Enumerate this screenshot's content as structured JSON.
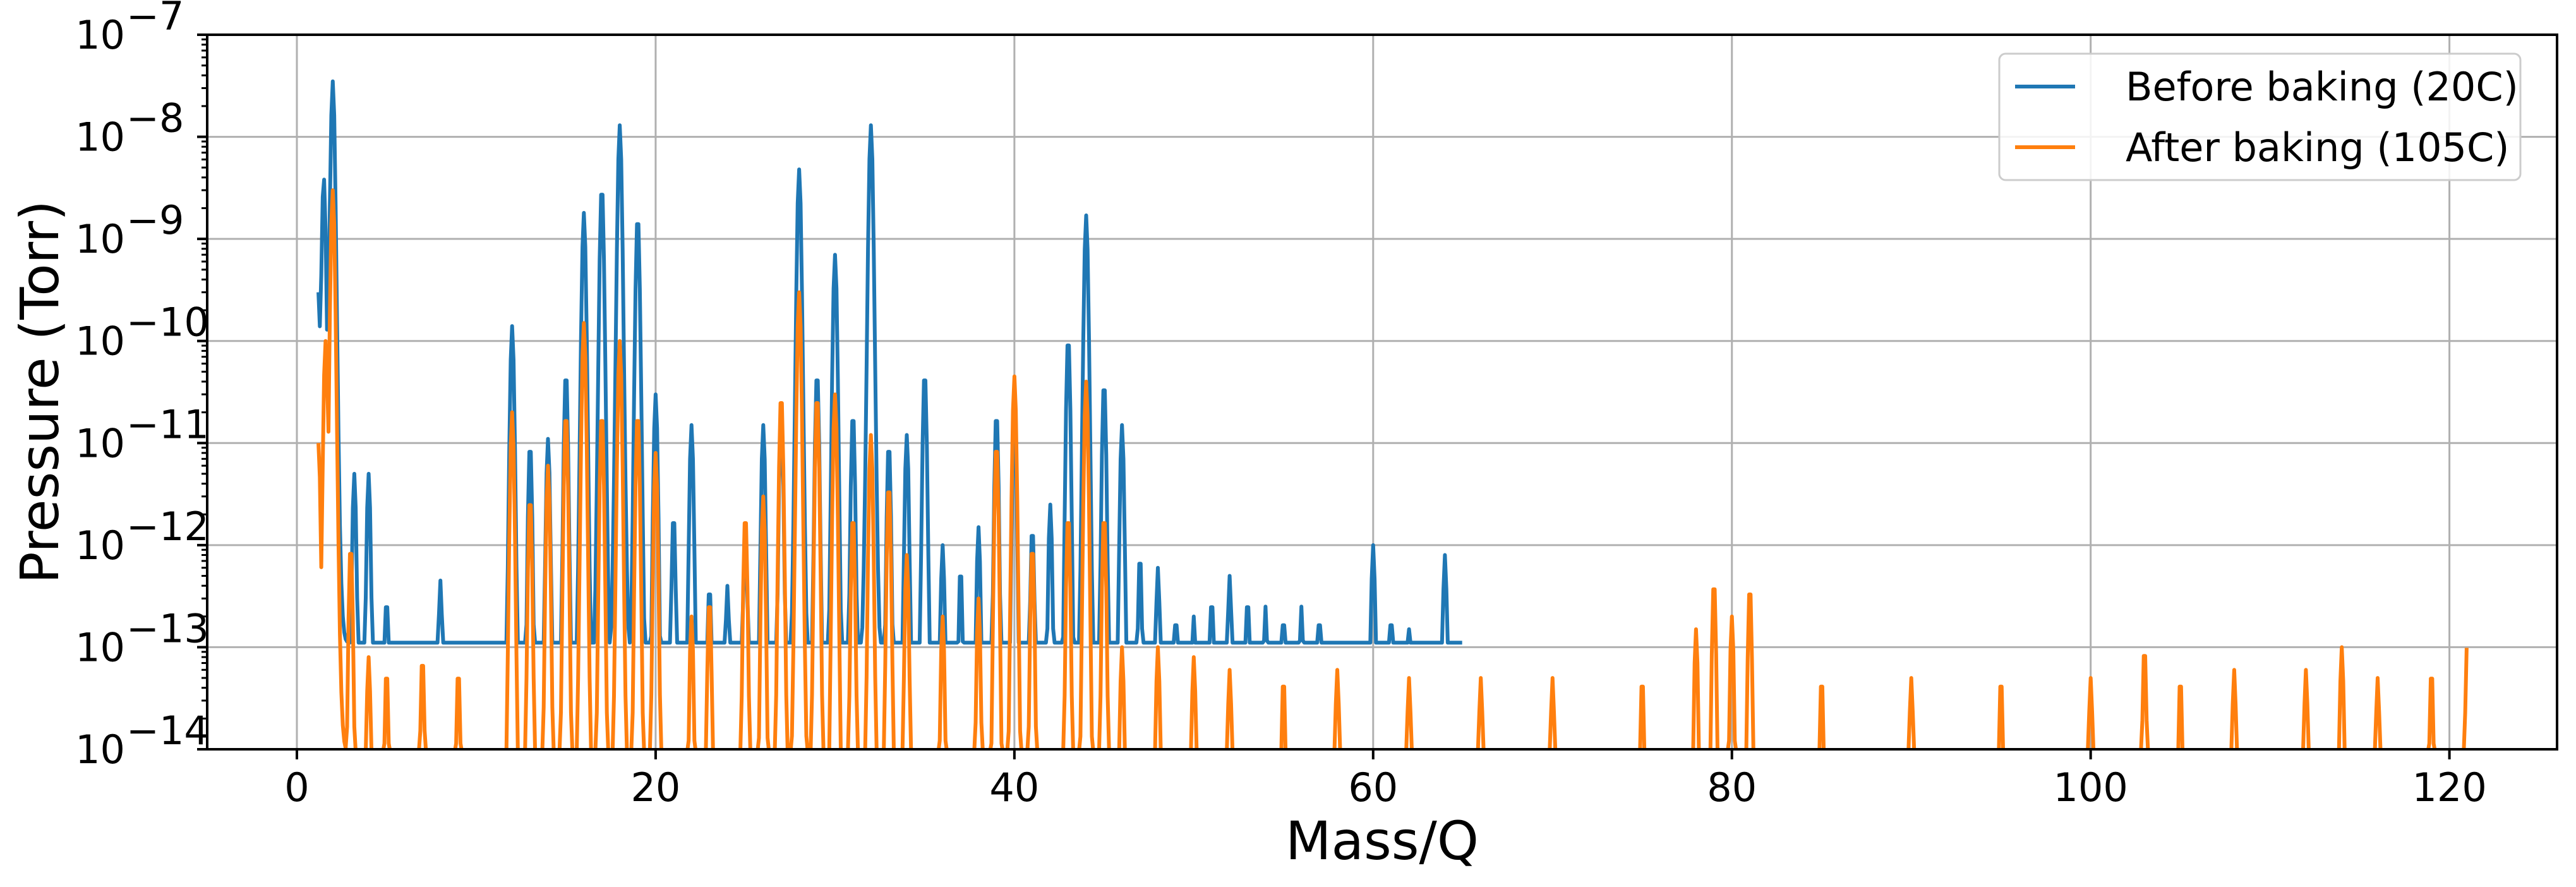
{
  "chart_data": {
    "type": "line",
    "title": "",
    "xlabel": "Mass/Q",
    "ylabel": "Pressure (Torr)",
    "xlim": [
      -5,
      126
    ],
    "ylim": [
      1e-14,
      1e-07
    ],
    "y_scale": "log",
    "grid": true,
    "legend_position": "top-right",
    "x_ticks": [
      "0",
      "20",
      "40",
      "60",
      "80",
      "100",
      "120"
    ],
    "x_tick_values": [
      0,
      20,
      40,
      60,
      80,
      100,
      120
    ],
    "y_tick_exponents": [
      "−7",
      "−8",
      "−9",
      "−10",
      "−11",
      "−12",
      "−13",
      "−14"
    ],
    "y_tick_values": [
      -7,
      -8,
      -9,
      -10,
      -11,
      -12,
      -13,
      -14
    ],
    "y_tick_base": "10",
    "series": [
      {
        "name": "Before baking (20C)",
        "color": "#1f77b4",
        "x_end": 65,
        "peaks": [
          [
            1.2,
            3e-10
          ],
          [
            1.5,
            4e-09
          ],
          [
            2.0,
            3.5e-08
          ],
          [
            3.2,
            5e-12
          ],
          [
            4.0,
            5e-12
          ],
          [
            5.0,
            3e-13
          ],
          [
            8.0,
            4.5e-13
          ],
          [
            10.5,
            5e-14
          ],
          [
            12.0,
            1.4e-10
          ],
          [
            13.0,
            1e-11
          ],
          [
            14.0,
            1.1e-11
          ],
          [
            15.0,
            5e-11
          ],
          [
            16.0,
            1.8e-09
          ],
          [
            17.0,
            3.3e-09
          ],
          [
            18.0,
            1.3e-08
          ],
          [
            19.0,
            1.7e-09
          ],
          [
            20.0,
            3e-11
          ],
          [
            21.0,
            2e-12
          ],
          [
            22.0,
            1.5e-11
          ],
          [
            23.0,
            4e-13
          ],
          [
            24.0,
            4e-13
          ],
          [
            25.0,
            1.5e-12
          ],
          [
            26.0,
            1.5e-11
          ],
          [
            27.0,
            2e-11
          ],
          [
            28.0,
            4.8e-09
          ],
          [
            29.0,
            5e-11
          ],
          [
            30.0,
            7e-10
          ],
          [
            31.0,
            2e-11
          ],
          [
            32.0,
            1.3e-08
          ],
          [
            33.0,
            1e-11
          ],
          [
            34.0,
            1.2e-11
          ],
          [
            35.0,
            5e-11
          ],
          [
            36.0,
            1e-12
          ],
          [
            37.0,
            6e-13
          ],
          [
            38.0,
            1.5e-12
          ],
          [
            39.0,
            2e-11
          ],
          [
            40.0,
            2.2e-11
          ],
          [
            41.0,
            1.5e-12
          ],
          [
            42.0,
            2.5e-12
          ],
          [
            43.0,
            1.1e-10
          ],
          [
            44.0,
            1.7e-09
          ],
          [
            45.0,
            4e-11
          ],
          [
            46.0,
            1.5e-11
          ],
          [
            47.0,
            8e-13
          ],
          [
            48.0,
            6e-13
          ],
          [
            49.0,
            2e-13
          ],
          [
            50.0,
            2e-13
          ],
          [
            51.0,
            3e-13
          ],
          [
            52.0,
            5e-13
          ],
          [
            53.0,
            3e-13
          ],
          [
            54.0,
            2.5e-13
          ],
          [
            55.0,
            2e-13
          ],
          [
            56.0,
            2.5e-13
          ],
          [
            57.0,
            2e-13
          ],
          [
            58.0,
            1e-13
          ],
          [
            59.0,
            1e-13
          ],
          [
            60.0,
            1e-12
          ],
          [
            61.0,
            2e-13
          ],
          [
            62.0,
            1.5e-13
          ],
          [
            63.0,
            1e-13
          ],
          [
            64.0,
            8e-13
          ],
          [
            65.0,
            7e-14
          ]
        ]
      },
      {
        "name": "After baking (105C)",
        "color": "#ff7f0e",
        "x_end": 121,
        "peaks": [
          [
            1.2,
            1e-11
          ],
          [
            1.6,
            1e-10
          ],
          [
            2.0,
            3e-09
          ],
          [
            3.0,
            1e-12
          ],
          [
            4.0,
            8e-14
          ],
          [
            5.0,
            6e-14
          ],
          [
            7.0,
            8e-14
          ],
          [
            9.0,
            6e-14
          ],
          [
            12.0,
            2e-11
          ],
          [
            13.0,
            3e-12
          ],
          [
            14.0,
            6e-12
          ],
          [
            15.0,
            2e-11
          ],
          [
            16.0,
            1.5e-10
          ],
          [
            17.0,
            2e-11
          ],
          [
            18.0,
            1e-10
          ],
          [
            19.0,
            2e-11
          ],
          [
            20.0,
            8e-12
          ],
          [
            22.0,
            2e-13
          ],
          [
            23.0,
            3e-13
          ],
          [
            25.0,
            2e-12
          ],
          [
            26.0,
            3e-12
          ],
          [
            27.0,
            3e-11
          ],
          [
            28.0,
            3e-10
          ],
          [
            29.0,
            3e-11
          ],
          [
            30.0,
            3e-11
          ],
          [
            31.0,
            2e-12
          ],
          [
            32.0,
            1.2e-11
          ],
          [
            33.0,
            4e-12
          ],
          [
            34.0,
            8e-13
          ],
          [
            36.0,
            2e-13
          ],
          [
            38.0,
            3e-13
          ],
          [
            39.0,
            1e-11
          ],
          [
            40.0,
            4.5e-11
          ],
          [
            41.0,
            1e-12
          ],
          [
            43.0,
            2e-12
          ],
          [
            44.0,
            4e-11
          ],
          [
            45.0,
            2e-12
          ],
          [
            46.0,
            1e-13
          ],
          [
            48.0,
            1e-13
          ],
          [
            50.0,
            8e-14
          ],
          [
            52.0,
            6e-14
          ],
          [
            55.0,
            5e-14
          ],
          [
            58.0,
            6e-14
          ],
          [
            62.0,
            5e-14
          ],
          [
            66.0,
            5e-14
          ],
          [
            70.0,
            5e-14
          ],
          [
            75.0,
            5e-14
          ],
          [
            78.0,
            1.5e-13
          ],
          [
            79.0,
            4.5e-13
          ],
          [
            80.0,
            2e-13
          ],
          [
            81.0,
            4e-13
          ],
          [
            85.0,
            5e-14
          ],
          [
            90.0,
            5e-14
          ],
          [
            95.0,
            5e-14
          ],
          [
            100.0,
            5e-14
          ],
          [
            103.0,
            1e-13
          ],
          [
            105.0,
            5e-14
          ],
          [
            108.0,
            6e-14
          ],
          [
            112.0,
            6e-14
          ],
          [
            114.0,
            1e-13
          ],
          [
            116.0,
            5e-14
          ],
          [
            119.0,
            6e-14
          ],
          [
            121.0,
            1.2e-13
          ]
        ]
      }
    ]
  }
}
